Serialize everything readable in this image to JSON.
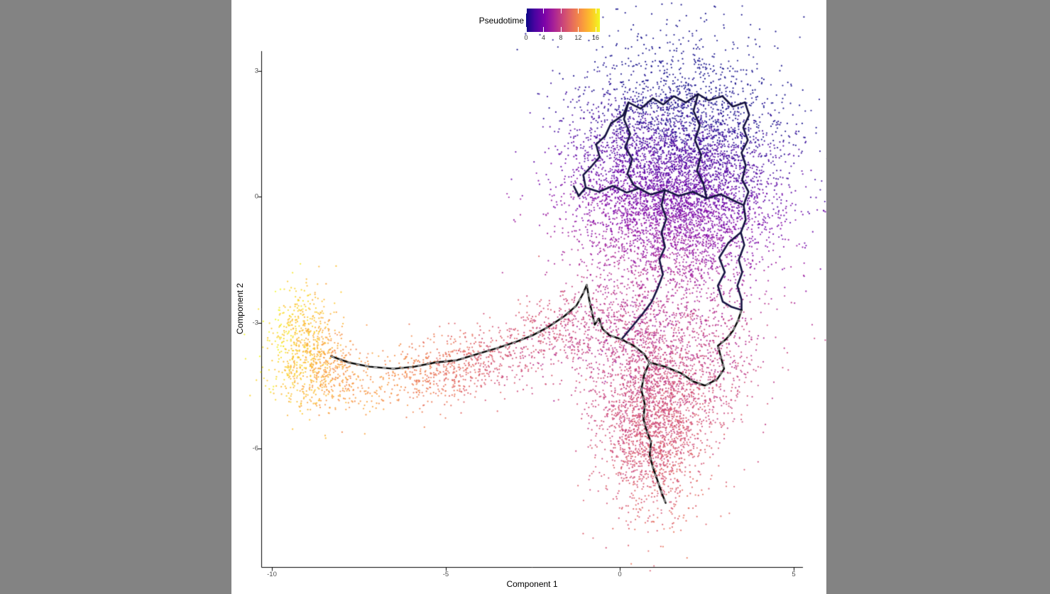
{
  "colors": {
    "desktop_gray": "#838383",
    "panel_white": "#ffffff",
    "axis": "#000000",
    "tick_label": "#4d4d4d",
    "legend_label": "#333333"
  },
  "chart_data": {
    "type": "scatter",
    "title": "",
    "xlabel": "Component 1",
    "ylabel": "Component 2",
    "x_ticks": [
      -10,
      -5,
      0,
      5
    ],
    "y_ticks": [
      3,
      0,
      -3,
      -6
    ],
    "xlim": [
      -10.8,
      5.6
    ],
    "ylim": [
      -8.4,
      3.5
    ],
    "grid": false,
    "point_radius": 1.1,
    "seed": 42,
    "legend": {
      "title": "Pseudotime",
      "position": "top",
      "ticks": [
        0,
        4,
        8,
        12,
        16
      ],
      "domain": [
        0,
        17
      ],
      "colormap_stops": [
        [
          0.0,
          "#0d0887"
        ],
        [
          0.12,
          "#4b03a1"
        ],
        [
          0.25,
          "#7d03a8"
        ],
        [
          0.38,
          "#a82296"
        ],
        [
          0.5,
          "#cb4679"
        ],
        [
          0.62,
          "#e56b5d"
        ],
        [
          0.75,
          "#f89441"
        ],
        [
          0.88,
          "#fdc328"
        ],
        [
          1.0,
          "#f0f921"
        ]
      ]
    },
    "clusters": [
      {
        "name": "main-blob",
        "cx": 1.6,
        "cy": 0.35,
        "sx": 1.5,
        "sy": 1.45,
        "n": 6200,
        "pt": {
          "base": 3.1,
          "kx": -0.25,
          "ky": -1.45,
          "noise": 1.1
        }
      },
      {
        "name": "lower-blob",
        "cx": 0.95,
        "cy": -5.2,
        "sx": 0.85,
        "sy": 1.15,
        "n": 2400,
        "pt": {
          "base": 8.8,
          "kx": 0.2,
          "ky": -0.4,
          "noise": 0.9
        }
      },
      {
        "name": "bridge-lower-right",
        "cx": 2.6,
        "cy": -3.9,
        "sx": 0.75,
        "sy": 0.8,
        "n": 420,
        "pt": {
          "base": 7.8,
          "kx": 0.0,
          "ky": -0.5,
          "noise": 0.9
        }
      },
      {
        "name": "bridge-left",
        "cx": 0.1,
        "cy": -3.1,
        "sx": 1.0,
        "sy": 0.55,
        "n": 430,
        "pt": {
          "base": 7.3,
          "kx": -0.4,
          "ky": -0.6,
          "noise": 0.8
        }
      },
      {
        "name": "tail",
        "cx": -4.7,
        "cy": -4.05,
        "sx": 1.55,
        "sy": 0.42,
        "n": 780,
        "shear": 0.17,
        "pt": {
          "base": 10.4,
          "kx": -1.05,
          "ky": 0.0,
          "noise": 0.8
        }
      },
      {
        "name": "tail-neck",
        "cx": -1.7,
        "cy": -3.2,
        "sx": 0.7,
        "sy": 0.5,
        "n": 260,
        "pt": {
          "base": 8.6,
          "kx": -0.8,
          "ky": 0.0,
          "noise": 0.7
        }
      },
      {
        "name": "terminal-yellow",
        "cx": -9.1,
        "cy": -3.55,
        "sx": 0.52,
        "sy": 0.72,
        "n": 620,
        "pt": {
          "base": 14.8,
          "kx": -1.3,
          "ky": 0.4,
          "noise": 1.2
        }
      },
      {
        "name": "terminal-fringe",
        "cx": -8.2,
        "cy": -4.2,
        "sx": 0.55,
        "sy": 0.4,
        "n": 260,
        "pt": {
          "base": 13.0,
          "kx": -1.0,
          "ky": 0.0,
          "noise": 1.0
        }
      }
    ],
    "trajectory": {
      "color": "#000000",
      "tree_color": "#151241",
      "dash_color": "#ffffff",
      "width": 2.4,
      "main_paths": [
        [
          [
            -8.3,
            -3.8
          ],
          [
            -7.8,
            -3.95
          ],
          [
            -7.2,
            -4.05
          ],
          [
            -6.5,
            -4.1
          ],
          [
            -5.9,
            -4.05
          ],
          [
            -5.3,
            -3.95
          ],
          [
            -4.7,
            -3.9
          ],
          [
            -4.1,
            -3.75
          ],
          [
            -3.5,
            -3.6
          ],
          [
            -2.95,
            -3.45
          ],
          [
            -2.5,
            -3.3
          ],
          [
            -2.05,
            -3.1
          ],
          [
            -1.6,
            -2.85
          ],
          [
            -1.25,
            -2.6
          ],
          [
            -1.05,
            -2.3
          ],
          [
            -0.95,
            -2.1
          ],
          [
            -0.88,
            -2.45
          ],
          [
            -0.8,
            -2.75
          ],
          [
            -0.72,
            -3.05
          ],
          [
            -0.6,
            -2.9
          ],
          [
            -0.5,
            -3.15
          ],
          [
            -0.3,
            -3.3
          ],
          [
            0.05,
            -3.4
          ],
          [
            0.4,
            -3.55
          ],
          [
            0.7,
            -3.75
          ],
          [
            0.85,
            -3.95
          ]
        ],
        [
          [
            0.85,
            -3.95
          ],
          [
            0.7,
            -4.25
          ],
          [
            0.62,
            -4.6
          ],
          [
            0.72,
            -4.95
          ],
          [
            0.68,
            -5.3
          ],
          [
            0.78,
            -5.6
          ],
          [
            0.9,
            -5.85
          ],
          [
            0.86,
            -6.15
          ],
          [
            0.95,
            -6.45
          ],
          [
            1.1,
            -6.8
          ],
          [
            1.2,
            -7.05
          ],
          [
            1.32,
            -7.3
          ]
        ],
        [
          [
            0.85,
            -3.95
          ],
          [
            1.3,
            -4.05
          ],
          [
            1.75,
            -4.2
          ],
          [
            2.1,
            -4.4
          ],
          [
            2.45,
            -4.5
          ],
          [
            2.8,
            -4.35
          ],
          [
            3.0,
            -4.1
          ],
          [
            2.9,
            -3.8
          ],
          [
            2.82,
            -3.55
          ],
          [
            3.05,
            -3.4
          ],
          [
            3.25,
            -3.2
          ],
          [
            3.4,
            -2.95
          ],
          [
            3.5,
            -2.7
          ]
        ]
      ],
      "tree_paths": [
        [
          [
            0.1,
            1.95
          ],
          [
            0.25,
            2.25
          ],
          [
            0.6,
            2.1
          ],
          [
            0.95,
            2.35
          ],
          [
            1.25,
            2.2
          ],
          [
            1.55,
            2.4
          ],
          [
            1.9,
            2.25
          ],
          [
            2.25,
            2.45
          ],
          [
            2.55,
            2.3
          ],
          [
            2.95,
            2.4
          ],
          [
            3.25,
            2.15
          ],
          [
            3.6,
            2.25
          ]
        ],
        [
          [
            3.6,
            2.25
          ],
          [
            3.72,
            1.95
          ],
          [
            3.55,
            1.65
          ],
          [
            3.68,
            1.35
          ],
          [
            3.5,
            1.05
          ],
          [
            3.62,
            0.75
          ],
          [
            3.52,
            0.4
          ],
          [
            3.7,
            0.12
          ],
          [
            3.56,
            -0.2
          ],
          [
            3.62,
            -0.55
          ],
          [
            3.48,
            -0.85
          ],
          [
            3.58,
            -1.15
          ],
          [
            3.42,
            -1.5
          ],
          [
            3.52,
            -1.8
          ],
          [
            3.38,
            -2.12
          ],
          [
            3.5,
            -2.45
          ],
          [
            3.5,
            -2.7
          ]
        ],
        [
          [
            0.1,
            1.95
          ],
          [
            -0.25,
            1.75
          ],
          [
            -0.42,
            1.45
          ],
          [
            -0.68,
            1.25
          ],
          [
            -0.58,
            0.95
          ],
          [
            -0.82,
            0.72
          ],
          [
            -1.05,
            0.52
          ],
          [
            -0.98,
            0.22
          ],
          [
            -1.18,
            0.02
          ],
          [
            -1.32,
            0.25
          ]
        ],
        [
          [
            -0.98,
            0.22
          ],
          [
            -0.6,
            0.12
          ],
          [
            -0.2,
            0.26
          ],
          [
            0.2,
            0.1
          ],
          [
            0.55,
            0.2
          ],
          [
            0.9,
            0.05
          ],
          [
            1.3,
            0.16
          ],
          [
            1.7,
            0.02
          ],
          [
            2.1,
            0.12
          ],
          [
            2.5,
            -0.04
          ],
          [
            2.9,
            0.06
          ],
          [
            3.3,
            -0.1
          ],
          [
            3.56,
            -0.2
          ]
        ],
        [
          [
            1.3,
            0.16
          ],
          [
            1.2,
            -0.2
          ],
          [
            1.34,
            -0.52
          ],
          [
            1.2,
            -0.85
          ],
          [
            1.3,
            -1.2
          ],
          [
            1.14,
            -1.5
          ],
          [
            1.24,
            -1.85
          ],
          [
            1.08,
            -2.2
          ],
          [
            0.92,
            -2.5
          ],
          [
            0.65,
            -2.8
          ],
          [
            0.35,
            -3.1
          ],
          [
            0.05,
            -3.4
          ]
        ],
        [
          [
            0.25,
            2.25
          ],
          [
            0.12,
            1.85
          ],
          [
            0.3,
            1.5
          ],
          [
            0.16,
            1.18
          ],
          [
            0.36,
            0.9
          ],
          [
            0.22,
            0.55
          ],
          [
            0.4,
            0.28
          ],
          [
            0.55,
            0.2
          ]
        ],
        [
          [
            2.25,
            2.45
          ],
          [
            2.12,
            2.05
          ],
          [
            2.3,
            1.7
          ],
          [
            2.16,
            1.35
          ],
          [
            2.34,
            1.0
          ],
          [
            2.22,
            0.62
          ],
          [
            2.4,
            0.32
          ],
          [
            2.5,
            -0.04
          ]
        ],
        [
          [
            3.48,
            -0.85
          ],
          [
            3.12,
            -1.1
          ],
          [
            2.86,
            -1.45
          ],
          [
            3.02,
            -1.8
          ],
          [
            2.82,
            -2.12
          ],
          [
            2.96,
            -2.5
          ],
          [
            3.2,
            -2.62
          ],
          [
            3.5,
            -2.7
          ]
        ]
      ]
    }
  }
}
